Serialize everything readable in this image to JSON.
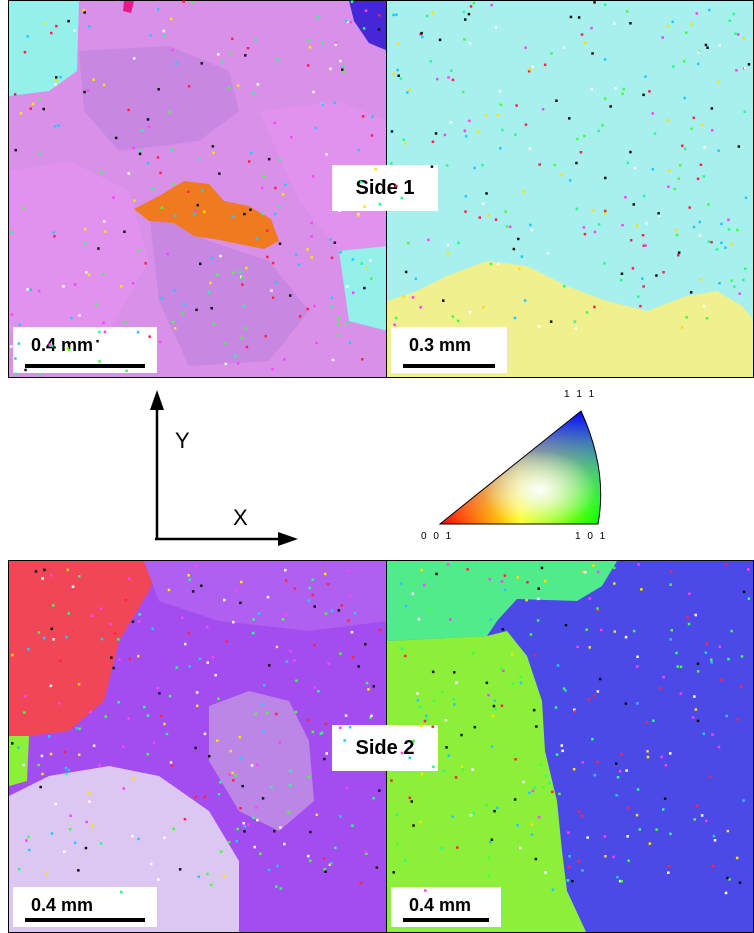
{
  "panels": [
    {
      "id": "top-left",
      "scale_label": "0.4 mm",
      "background": "#d990e8"
    },
    {
      "id": "top-right",
      "scale_label": "0.3 mm",
      "background": "#a7f0ee"
    },
    {
      "id": "bottom-left",
      "scale_label": "0.4 mm",
      "background": "#a34cf0"
    },
    {
      "id": "bottom-right",
      "scale_label": "0.4 mm",
      "background": "#4b49e8"
    }
  ],
  "side_labels": {
    "side1": "Side 1",
    "side2": "Side 2"
  },
  "axes": {
    "y_label": "Y",
    "x_label": "X"
  },
  "ipf_triangle": {
    "label_111": "1 1 1",
    "label_001": "0 0 1",
    "label_101": "1 0 1"
  },
  "colors": {
    "orange_grain": "#f07a1f",
    "yellow_region": "#f0f08e",
    "red_grain": "#f04658",
    "green_grain": "#8cf03a",
    "light_green": "#52eb8c",
    "pale_lilac": "#dcc7f2",
    "light_violet": "#bb86e6",
    "grain_pink_2": "#e092ee",
    "grain_pink_3": "#c887e2",
    "cyan_grain": "#94f0ea",
    "teal_green": "#8cf0c8",
    "top_magenta": "#e5198c",
    "top_blue": "#4626d6"
  }
}
